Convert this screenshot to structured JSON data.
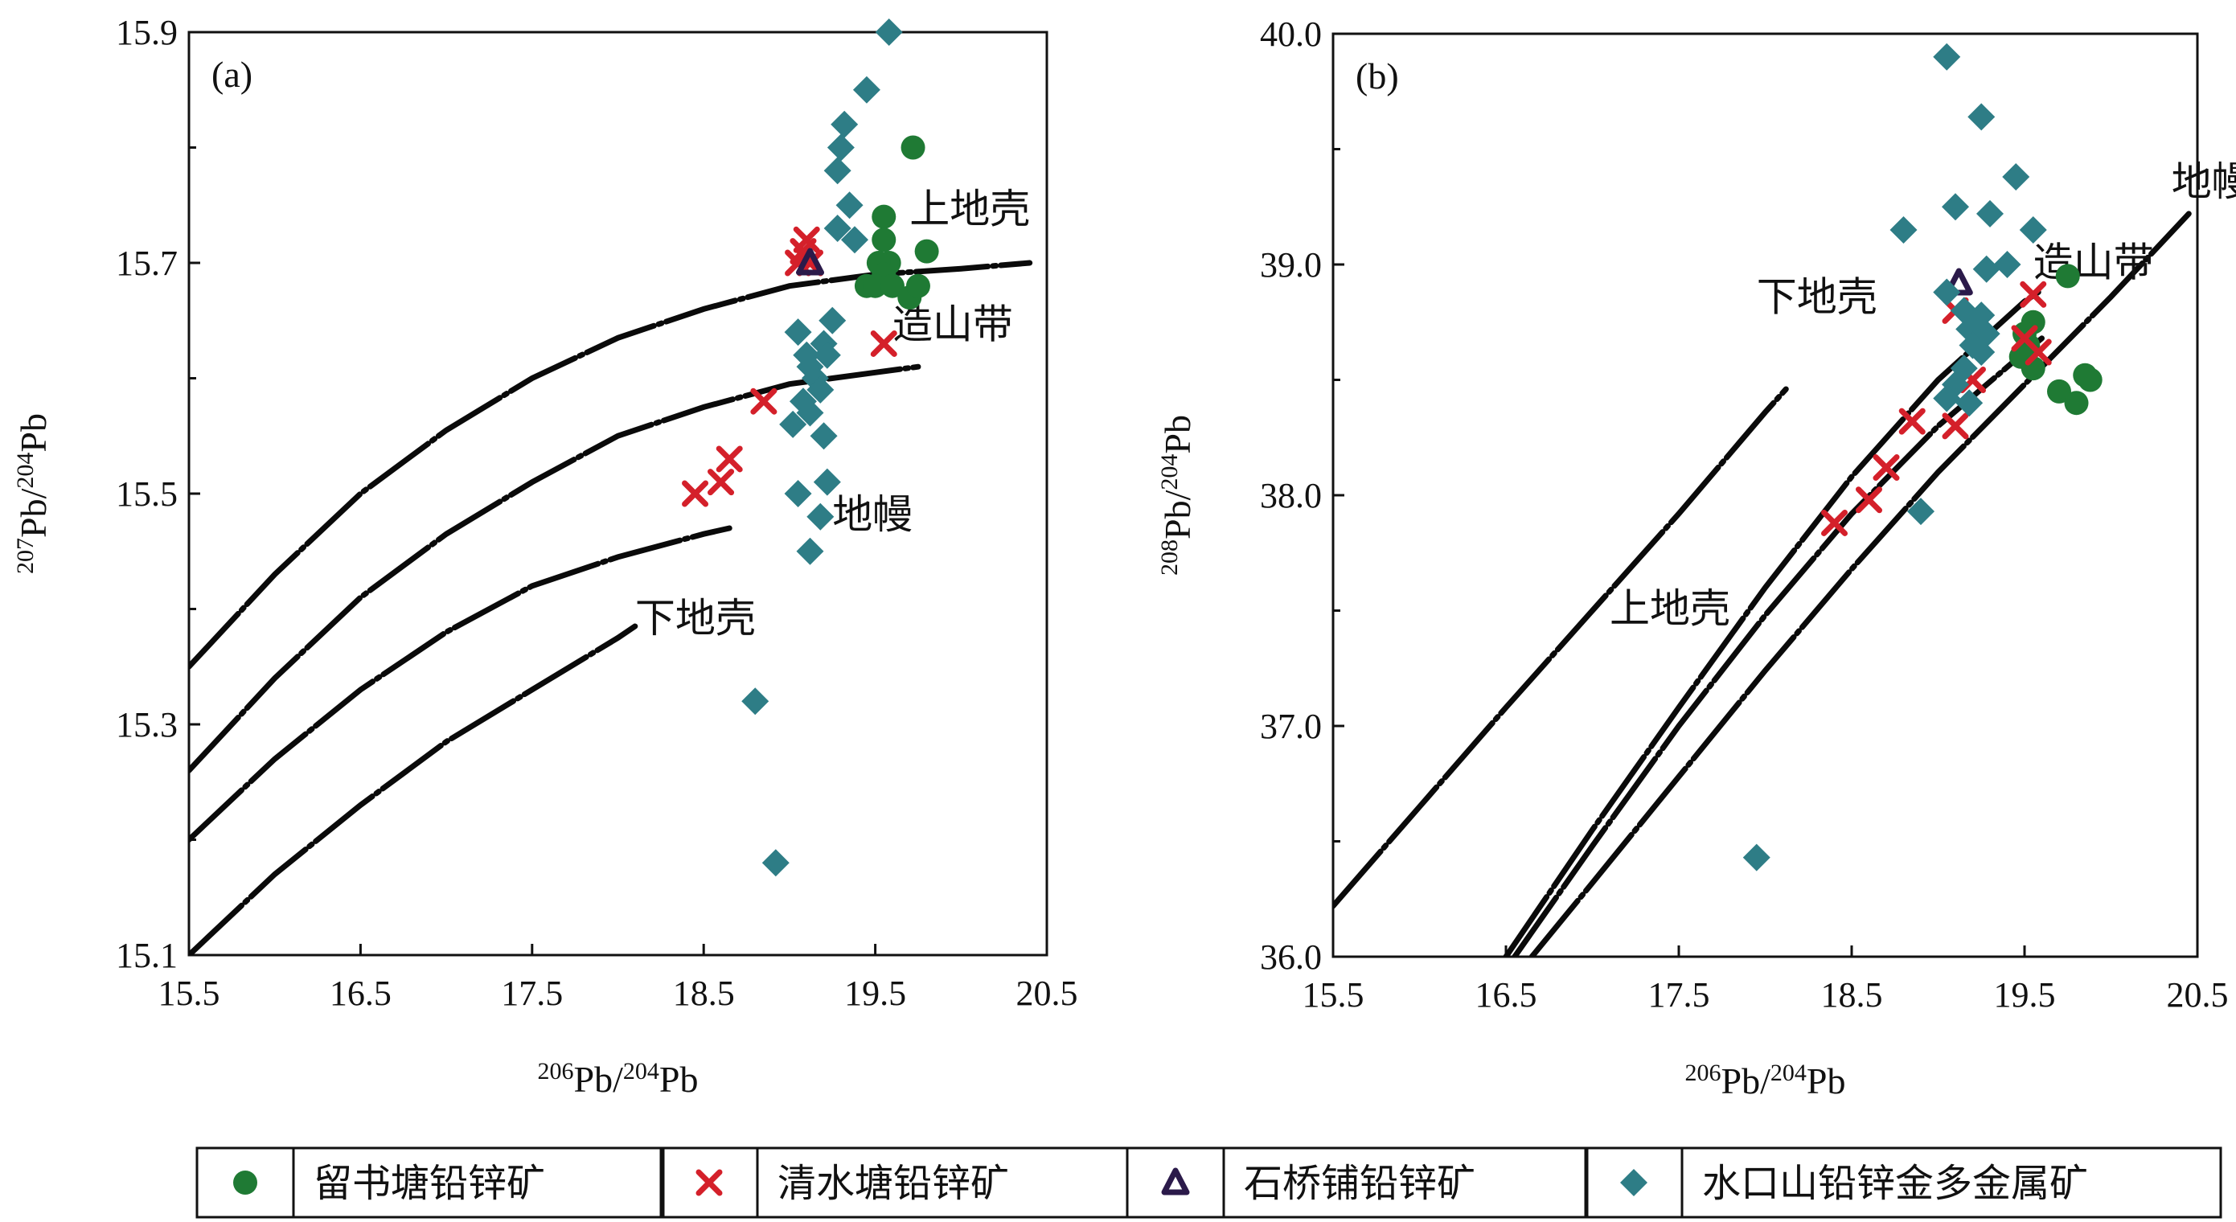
{
  "colors": {
    "liushutang": "#1f7a34",
    "qingshuitang": "#d4202a",
    "shiqiaopu": "#2b1a4a",
    "shuikoushan": "#2e7d86",
    "curve": "#0a0a0a"
  },
  "legend": [
    {
      "key": "liushutang",
      "label": "留书塘铅锌矿",
      "marker": "circle"
    },
    {
      "key": "qingshuitang",
      "label": "清水塘铅锌矿",
      "marker": "x"
    },
    {
      "key": "shiqiaopu",
      "label": "石桥铺铅锌矿",
      "marker": "triangle"
    },
    {
      "key": "shuikoushan",
      "label": "水口山铅锌金多金属矿",
      "marker": "diamond"
    }
  ],
  "chart_data": [
    {
      "type": "scatter",
      "panel_label": "(a)",
      "xlabel": "206Pb/204Pb",
      "ylabel": "207Pb/204Pb",
      "xlim": [
        15.5,
        20.5
      ],
      "ylim": [
        15.1,
        15.9
      ],
      "xticks": [
        "15.5",
        "16.5",
        "17.5",
        "18.5",
        "19.5",
        "20.5"
      ],
      "yticks": [
        "15.1",
        "15.3",
        "15.5",
        "15.7",
        "15.9"
      ],
      "curves": [
        {
          "label": "上地壳",
          "label_at": [
            19.7,
            15.735
          ],
          "points": [
            [
              15.5,
              15.35
            ],
            [
              16.0,
              15.43
            ],
            [
              16.5,
              15.5
            ],
            [
              17.0,
              15.555
            ],
            [
              17.5,
              15.6
            ],
            [
              18.0,
              15.635
            ],
            [
              18.5,
              15.66
            ],
            [
              19.0,
              15.68
            ],
            [
              19.5,
              15.69
            ],
            [
              20.0,
              15.695
            ],
            [
              20.4,
              15.7
            ]
          ]
        },
        {
          "label": "造山带",
          "label_at": [
            19.6,
            15.635
          ],
          "points": [
            [
              15.5,
              15.26
            ],
            [
              16.0,
              15.34
            ],
            [
              16.5,
              15.41
            ],
            [
              17.0,
              15.465
            ],
            [
              17.5,
              15.51
            ],
            [
              18.0,
              15.55
            ],
            [
              18.5,
              15.575
            ],
            [
              19.0,
              15.595
            ],
            [
              19.5,
              15.605
            ],
            [
              19.75,
              15.61
            ]
          ]
        },
        {
          "label": "地幔",
          "label_at": [
            19.25,
            15.47
          ],
          "points": [
            [
              15.5,
              15.2
            ],
            [
              16.0,
              15.27
            ],
            [
              16.5,
              15.33
            ],
            [
              17.0,
              15.38
            ],
            [
              17.5,
              15.42
            ],
            [
              18.0,
              15.445
            ],
            [
              18.5,
              15.465
            ],
            [
              18.65,
              15.47
            ]
          ]
        },
        {
          "label": "下地壳",
          "label_at": [
            18.1,
            15.38
          ],
          "points": [
            [
              15.5,
              15.1
            ],
            [
              16.0,
              15.17
            ],
            [
              16.5,
              15.23
            ],
            [
              17.0,
              15.285
            ],
            [
              17.5,
              15.33
            ],
            [
              18.0,
              15.375
            ],
            [
              18.1,
              15.385
            ]
          ]
        }
      ],
      "series": [
        {
          "key": "liushutang",
          "points": [
            [
              19.55,
              15.74
            ],
            [
              19.72,
              15.8
            ],
            [
              19.8,
              15.71
            ],
            [
              19.55,
              15.72
            ],
            [
              19.58,
              15.7
            ],
            [
              19.52,
              15.7
            ],
            [
              19.55,
              15.69
            ],
            [
              19.45,
              15.68
            ],
            [
              19.5,
              15.68
            ],
            [
              19.6,
              15.68
            ],
            [
              19.7,
              15.67
            ],
            [
              19.75,
              15.68
            ]
          ]
        },
        {
          "key": "qingshuitang",
          "points": [
            [
              19.1,
              15.72
            ],
            [
              19.08,
              15.71
            ],
            [
              19.05,
              15.7
            ],
            [
              19.12,
              15.7
            ],
            [
              19.55,
              15.63
            ],
            [
              18.85,
              15.58
            ],
            [
              18.65,
              15.53
            ],
            [
              18.6,
              15.51
            ],
            [
              18.45,
              15.5
            ]
          ]
        },
        {
          "key": "shiqiaopu",
          "points": [
            [
              19.12,
              15.7
            ]
          ]
        },
        {
          "key": "shuikoushan",
          "points": [
            [
              19.58,
              15.9
            ],
            [
              19.45,
              15.85
            ],
            [
              19.32,
              15.82
            ],
            [
              19.3,
              15.8
            ],
            [
              19.28,
              15.78
            ],
            [
              19.35,
              15.75
            ],
            [
              19.28,
              15.73
            ],
            [
              19.38,
              15.72
            ],
            [
              19.25,
              15.65
            ],
            [
              19.05,
              15.64
            ],
            [
              19.2,
              15.63
            ],
            [
              19.22,
              15.62
            ],
            [
              19.1,
              15.62
            ],
            [
              19.12,
              15.61
            ],
            [
              19.15,
              15.6
            ],
            [
              19.18,
              15.59
            ],
            [
              19.08,
              15.58
            ],
            [
              19.12,
              15.57
            ],
            [
              19.02,
              15.56
            ],
            [
              19.2,
              15.55
            ],
            [
              19.22,
              15.51
            ],
            [
              19.05,
              15.5
            ],
            [
              19.18,
              15.48
            ],
            [
              19.12,
              15.45
            ],
            [
              18.8,
              15.32
            ],
            [
              18.92,
              15.18
            ]
          ]
        }
      ]
    },
    {
      "type": "scatter",
      "panel_label": "(b)",
      "xlabel": "206Pb/204Pb",
      "ylabel": "208Pb/204Pb",
      "xlim": [
        15.5,
        20.5
      ],
      "ylim": [
        36.0,
        40.0
      ],
      "xticks": [
        "15.5",
        "16.5",
        "17.5",
        "18.5",
        "19.5",
        "20.5"
      ],
      "yticks": [
        "36.0",
        "37.0",
        "38.0",
        "39.0",
        "40.0"
      ],
      "curves": [
        {
          "label": "下地壳",
          "label_at": [
            17.95,
            38.8
          ],
          "points": [
            [
              15.5,
              36.22
            ],
            [
              16.0,
              36.65
            ],
            [
              16.5,
              37.08
            ],
            [
              17.0,
              37.5
            ],
            [
              17.5,
              37.92
            ],
            [
              18.0,
              38.36
            ],
            [
              18.12,
              38.46
            ]
          ]
        },
        {
          "label": "造山带",
          "label_at": [
            19.55,
            38.95
          ],
          "points": [
            [
              16.5,
              36.0
            ],
            [
              17.0,
              36.55
            ],
            [
              17.5,
              37.08
            ],
            [
              18.0,
              37.6
            ],
            [
              18.5,
              38.08
            ],
            [
              19.0,
              38.5
            ],
            [
              19.5,
              38.84
            ],
            [
              19.58,
              38.88
            ]
          ]
        },
        {
          "label": "上地壳",
          "label_at": [
            17.1,
            37.45
          ],
          "points": [
            [
              16.55,
              36.0
            ],
            [
              17.0,
              36.48
            ],
            [
              17.5,
              37.0
            ],
            [
              18.0,
              37.48
            ],
            [
              18.5,
              37.92
            ],
            [
              19.0,
              38.3
            ],
            [
              19.5,
              38.62
            ],
            [
              19.6,
              38.68
            ]
          ]
        },
        {
          "label": "地幔",
          "label_at": [
            20.35,
            39.3
          ],
          "points": [
            [
              16.65,
              36.0
            ],
            [
              17.0,
              36.32
            ],
            [
              17.5,
              36.78
            ],
            [
              18.0,
              37.24
            ],
            [
              18.5,
              37.68
            ],
            [
              19.0,
              38.1
            ],
            [
              19.5,
              38.48
            ],
            [
              20.0,
              38.86
            ],
            [
              20.45,
              39.22
            ]
          ]
        }
      ],
      "series": [
        {
          "key": "liushutang",
          "points": [
            [
              19.75,
              38.95
            ],
            [
              19.55,
              38.75
            ],
            [
              19.5,
              38.7
            ],
            [
              19.52,
              38.65
            ],
            [
              19.48,
              38.6
            ],
            [
              19.55,
              38.55
            ],
            [
              19.7,
              38.45
            ],
            [
              19.8,
              38.4
            ],
            [
              19.85,
              38.52
            ],
            [
              19.88,
              38.5
            ]
          ]
        },
        {
          "key": "qingshuitang",
          "points": [
            [
              19.55,
              38.87
            ],
            [
              19.1,
              38.8
            ],
            [
              19.5,
              38.68
            ],
            [
              19.58,
              38.62
            ],
            [
              19.2,
              38.5
            ],
            [
              18.85,
              38.32
            ],
            [
              19.1,
              38.3
            ],
            [
              18.7,
              38.12
            ],
            [
              18.6,
              37.98
            ],
            [
              18.4,
              37.88
            ]
          ]
        },
        {
          "key": "shiqiaopu",
          "points": [
            [
              19.12,
              38.92
            ]
          ]
        },
        {
          "key": "shuikoushan",
          "points": [
            [
              19.05,
              39.9
            ],
            [
              19.25,
              39.64
            ],
            [
              19.45,
              39.38
            ],
            [
              19.1,
              39.25
            ],
            [
              19.3,
              39.22
            ],
            [
              19.55,
              39.15
            ],
            [
              18.8,
              39.15
            ],
            [
              19.4,
              39.0
            ],
            [
              19.28,
              38.98
            ],
            [
              19.05,
              38.88
            ],
            [
              19.15,
              38.8
            ],
            [
              19.25,
              38.78
            ],
            [
              19.18,
              38.72
            ],
            [
              19.28,
              38.7
            ],
            [
              19.2,
              38.65
            ],
            [
              19.25,
              38.62
            ],
            [
              19.15,
              38.55
            ],
            [
              19.1,
              38.48
            ],
            [
              19.05,
              38.42
            ],
            [
              19.18,
              38.4
            ],
            [
              18.9,
              37.93
            ],
            [
              17.95,
              36.43
            ]
          ]
        }
      ]
    }
  ]
}
